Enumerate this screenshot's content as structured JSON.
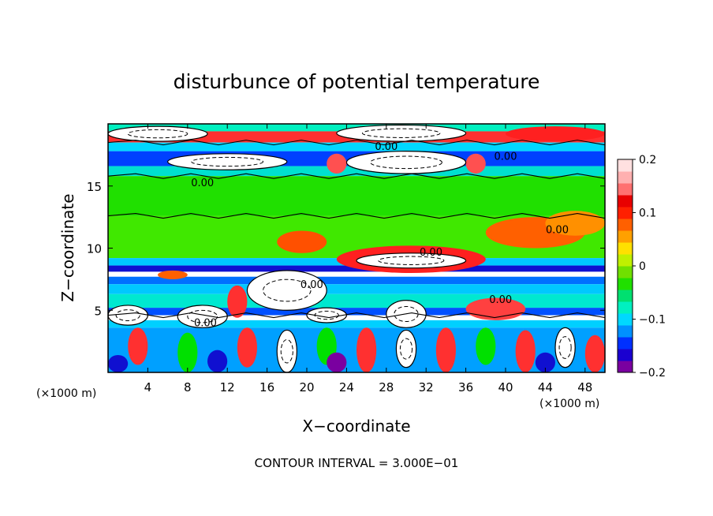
{
  "chart_data": {
    "type": "heatmap",
    "title": "disturbunce of potential temperature",
    "xlabel": "X−coordinate",
    "ylabel": "Z−coordinate",
    "x_unit_left": "(×1000 m)",
    "x_unit_right": "(×1000 m)",
    "xlim": [
      0,
      50
    ],
    "ylim": [
      0,
      20
    ],
    "x_ticks": [
      4,
      8,
      12,
      16,
      20,
      24,
      28,
      32,
      36,
      40,
      44,
      48
    ],
    "y_ticks": [
      5,
      10,
      15
    ],
    "colorbar": {
      "range": [
        -0.2,
        0.2
      ],
      "tick_values": [
        0.2,
        0.1,
        0,
        -0.1,
        -0.2
      ],
      "tick_labels": [
        "0.2",
        "0.1",
        "0",
        "−0.1",
        "−0.2"
      ],
      "colors": [
        "#7a00a0",
        "#1a00d0",
        "#0030ff",
        "#0090ff",
        "#00d8ff",
        "#00f0c0",
        "#00e070",
        "#20e000",
        "#70e000",
        "#c0f000",
        "#ffe000",
        "#ffa000",
        "#ff6000",
        "#ff2000",
        "#e80000",
        "#ff7070",
        "#ffb0b0",
        "#ffe0e0"
      ]
    },
    "contour_interval_text": "CONTOUR INTERVAL = 3.000E−01",
    "contour_labels": [
      {
        "text": "0.00",
        "x": 28,
        "z": 17.9
      },
      {
        "text": "0.00",
        "x": 40,
        "z": 17.1
      },
      {
        "text": "0.00",
        "x": 9.5,
        "z": 15.0
      },
      {
        "text": "0.00",
        "x": 32.5,
        "z": 9.4
      },
      {
        "text": "0.00",
        "x": 45.2,
        "z": 11.2
      },
      {
        "text": "0.00",
        "x": 20.5,
        "z": 6.8
      },
      {
        "text": "0.00",
        "x": 9.8,
        "z": 3.7
      },
      {
        "text": "0.00",
        "x": 39.5,
        "z": 5.6
      }
    ],
    "bands": [
      {
        "z0": 19.4,
        "z1": 20.0,
        "color": "#00f0c0"
      },
      {
        "z0": 18.5,
        "z1": 19.4,
        "color": "#ff3030"
      },
      {
        "z0": 17.8,
        "z1": 18.5,
        "color": "#00d8ff"
      },
      {
        "z0": 16.6,
        "z1": 17.8,
        "color": "#0040ff"
      },
      {
        "z0": 15.8,
        "z1": 16.6,
        "color": "#00e0d0"
      },
      {
        "z0": 12.6,
        "z1": 15.8,
        "color": "#20e000"
      },
      {
        "z0": 9.2,
        "z1": 12.6,
        "color": "#40e800"
      },
      {
        "z0": 8.6,
        "z1": 9.2,
        "color": "#00c8ff"
      },
      {
        "z0": 8.1,
        "z1": 8.6,
        "color": "#1010d0"
      },
      {
        "z0": 7.7,
        "z1": 8.1,
        "color": "#ffffff"
      },
      {
        "z0": 7.1,
        "z1": 7.7,
        "color": "#0070ff"
      },
      {
        "z0": 6.3,
        "z1": 7.1,
        "color": "#00c8ff"
      },
      {
        "z0": 5.2,
        "z1": 6.3,
        "color": "#00e8d0"
      },
      {
        "z0": 4.6,
        "z1": 5.2,
        "color": "#0050ff"
      },
      {
        "z0": 4.2,
        "z1": 4.6,
        "color": "#ffffff"
      },
      {
        "z0": 3.6,
        "z1": 4.2,
        "color": "#00d0ff"
      },
      {
        "z0": 0.0,
        "z1": 3.6,
        "color": "#00a0ff"
      }
    ],
    "cells": [
      {
        "x0": 0,
        "x1": 10,
        "z0": 18.6,
        "z1": 19.8,
        "color": "#ffffff"
      },
      {
        "x0": 23,
        "x1": 36,
        "z0": 18.6,
        "z1": 19.9,
        "color": "#ffffff"
      },
      {
        "x0": 6,
        "x1": 18,
        "z0": 16.3,
        "z1": 17.6,
        "color": "#ffffff"
      },
      {
        "x0": 24,
        "x1": 36,
        "z0": 16.0,
        "z1": 17.8,
        "color": "#ffffff"
      },
      {
        "x0": 22,
        "x1": 24,
        "z0": 16.0,
        "z1": 17.6,
        "color": "#ff5050"
      },
      {
        "x0": 36,
        "x1": 38,
        "z0": 16.0,
        "z1": 17.6,
        "color": "#ff5050"
      },
      {
        "x0": 40,
        "x1": 50,
        "z0": 18.6,
        "z1": 19.8,
        "color": "#ff2020"
      },
      {
        "x0": 17,
        "x1": 22,
        "z0": 9.6,
        "z1": 11.4,
        "color": "#ff5000"
      },
      {
        "x0": 23,
        "x1": 38,
        "z0": 8.0,
        "z1": 10.2,
        "color": "#ff2020"
      },
      {
        "x0": 25,
        "x1": 36,
        "z0": 8.4,
        "z1": 9.6,
        "color": "#ffffff"
      },
      {
        "x0": 38,
        "x1": 48,
        "z0": 10.0,
        "z1": 12.5,
        "color": "#ff6000"
      },
      {
        "x0": 44,
        "x1": 50,
        "z0": 11.0,
        "z1": 13.0,
        "color": "#ff9000"
      },
      {
        "x0": 14,
        "x1": 22,
        "z0": 5.0,
        "z1": 8.2,
        "color": "#ffffff"
      },
      {
        "x0": 12,
        "x1": 14,
        "z0": 4.4,
        "z1": 7.0,
        "color": "#ff3030"
      },
      {
        "x0": 5,
        "x1": 8,
        "z0": 7.5,
        "z1": 8.2,
        "color": "#ff6000"
      },
      {
        "x0": 0,
        "x1": 4,
        "z0": 3.8,
        "z1": 5.4,
        "color": "#ffffff"
      },
      {
        "x0": 7,
        "x1": 12,
        "z0": 3.6,
        "z1": 5.4,
        "color": "#ffffff"
      },
      {
        "x0": 20,
        "x1": 24,
        "z0": 4.0,
        "z1": 5.2,
        "color": "#ffffff"
      },
      {
        "x0": 28,
        "x1": 32,
        "z0": 3.6,
        "z1": 5.8,
        "color": "#ffffff"
      },
      {
        "x0": 36,
        "x1": 42,
        "z0": 4.2,
        "z1": 6.0,
        "color": "#ff4040"
      },
      {
        "x0": 2,
        "x1": 4,
        "z0": 0.6,
        "z1": 3.6,
        "color": "#ff3030"
      },
      {
        "x0": 7,
        "x1": 9,
        "z0": 0.0,
        "z1": 3.2,
        "color": "#00e000"
      },
      {
        "x0": 13,
        "x1": 15,
        "z0": 0.4,
        "z1": 3.6,
        "color": "#ff3030"
      },
      {
        "x0": 17,
        "x1": 19,
        "z0": 0.0,
        "z1": 3.4,
        "color": "#ffffff"
      },
      {
        "x0": 21,
        "x1": 23,
        "z0": 0.6,
        "z1": 3.6,
        "color": "#00e000"
      },
      {
        "x0": 25,
        "x1": 27,
        "z0": 0.0,
        "z1": 3.6,
        "color": "#ff3030"
      },
      {
        "x0": 29,
        "x1": 31,
        "z0": 0.4,
        "z1": 3.4,
        "color": "#ffffff"
      },
      {
        "x0": 33,
        "x1": 35,
        "z0": 0.0,
        "z1": 3.6,
        "color": "#ff3030"
      },
      {
        "x0": 37,
        "x1": 39,
        "z0": 0.6,
        "z1": 3.6,
        "color": "#00e000"
      },
      {
        "x0": 41,
        "x1": 43,
        "z0": 0.0,
        "z1": 3.4,
        "color": "#ff3030"
      },
      {
        "x0": 45,
        "x1": 47,
        "z0": 0.4,
        "z1": 3.6,
        "color": "#ffffff"
      },
      {
        "x0": 48,
        "x1": 50,
        "z0": 0.0,
        "z1": 3.0,
        "color": "#ff3030"
      },
      {
        "x0": 0,
        "x1": 2,
        "z0": 0.0,
        "z1": 1.4,
        "color": "#1010d0"
      },
      {
        "x0": 10,
        "x1": 12,
        "z0": 0.0,
        "z1": 1.8,
        "color": "#1010d0"
      },
      {
        "x0": 22,
        "x1": 24,
        "z0": 0.0,
        "z1": 1.6,
        "color": "#7a00a0"
      },
      {
        "x0": 43,
        "x1": 45,
        "z0": 0.0,
        "z1": 1.6,
        "color": "#1010d0"
      }
    ]
  }
}
